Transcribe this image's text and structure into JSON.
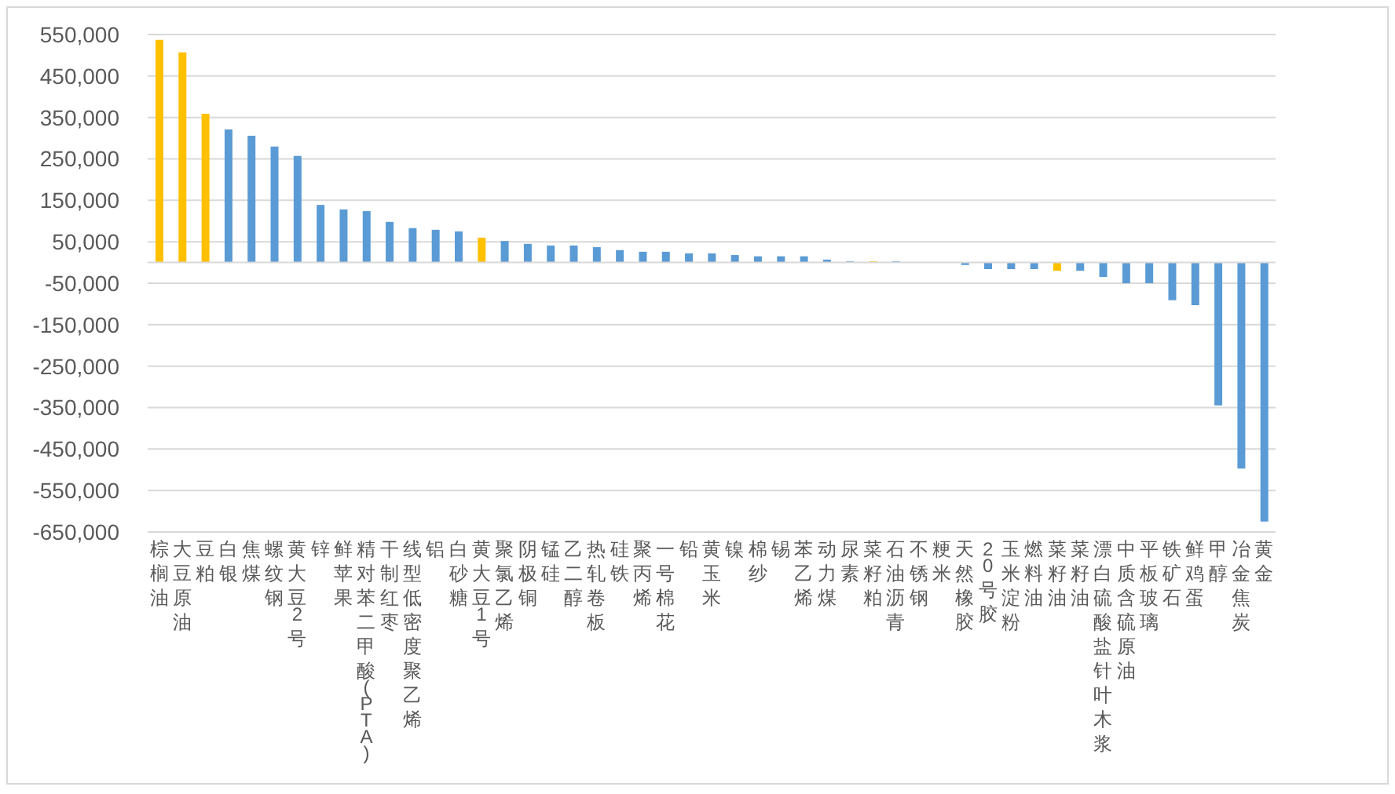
{
  "chart_data": {
    "type": "bar",
    "categories": [
      "棕榈油",
      "大豆原油",
      "豆粕",
      "白银",
      "焦煤",
      "螺纹钢",
      "黄大豆2号",
      "锌",
      "鲜苹果",
      "精对苯二甲酸(PTA)",
      "干制红枣",
      "线型低密度聚乙烯",
      "铝",
      "白砂糖",
      "黄大豆1号",
      "聚氯乙烯",
      "阴极铜",
      "锰硅",
      "乙二醇",
      "热轧卷板",
      "硅铁",
      "聚丙烯",
      "一号棉花",
      "铅",
      "黄玉米",
      "镍",
      "棉纱",
      "锡",
      "苯乙烯",
      "动力煤",
      "尿素",
      "菜籽粕",
      "石油沥青",
      "不锈钢",
      "粳米",
      "天然橡胶",
      "20号胶",
      "玉米淀粉",
      "燃料油",
      "菜籽油",
      "菜籽油",
      "漂白硫酸盐针叶木浆",
      "中质含硫原油",
      "平板玻璃",
      "铁矿石",
      "鲜鸡蛋",
      "甲醇",
      "冶金焦炭",
      "黄金"
    ],
    "values": [
      537000,
      507000,
      359000,
      321000,
      306000,
      280000,
      257000,
      139000,
      128000,
      124000,
      98000,
      83000,
      79000,
      75000,
      60000,
      52000,
      45000,
      41000,
      41000,
      37000,
      30000,
      26000,
      26000,
      22000,
      22000,
      18000,
      15000,
      15000,
      15000,
      7000,
      3000,
      3000,
      3000,
      0,
      0,
      -6000,
      -16000,
      -16000,
      -16000,
      -20000,
      -20000,
      -35000,
      -50000,
      -50000,
      -91000,
      -103000,
      -345000,
      -497000,
      -625000
    ],
    "colors": [
      "#ffc000",
      "#ffc000",
      "#ffc000",
      "#5b9bd5",
      "#5b9bd5",
      "#5b9bd5",
      "#5b9bd5",
      "#5b9bd5",
      "#5b9bd5",
      "#5b9bd5",
      "#5b9bd5",
      "#5b9bd5",
      "#5b9bd5",
      "#5b9bd5",
      "#ffc000",
      "#5b9bd5",
      "#5b9bd5",
      "#5b9bd5",
      "#5b9bd5",
      "#5b9bd5",
      "#5b9bd5",
      "#5b9bd5",
      "#5b9bd5",
      "#5b9bd5",
      "#5b9bd5",
      "#5b9bd5",
      "#5b9bd5",
      "#5b9bd5",
      "#5b9bd5",
      "#5b9bd5",
      "#5b9bd5",
      "#ffc000",
      "#5b9bd5",
      "#5b9bd5",
      "#5b9bd5",
      "#5b9bd5",
      "#5b9bd5",
      "#5b9bd5",
      "#5b9bd5",
      "#ffc000",
      "#5b9bd5",
      "#5b9bd5",
      "#5b9bd5",
      "#5b9bd5",
      "#5b9bd5",
      "#5b9bd5",
      "#5b9bd5",
      "#5b9bd5",
      "#5b9bd5"
    ],
    "ylim": [
      -650000,
      550000
    ],
    "yticks": [
      {
        "value": -650000,
        "label": "-650,000"
      },
      {
        "value": -550000,
        "label": "-550,000"
      },
      {
        "value": -450000,
        "label": "-450,000"
      },
      {
        "value": -350000,
        "label": "-350,000"
      },
      {
        "value": -250000,
        "label": "-250,000"
      },
      {
        "value": -150000,
        "label": "-150,000"
      },
      {
        "value": -50000,
        "label": "-50,000"
      },
      {
        "value": 50000,
        "label": "50,000"
      },
      {
        "value": 150000,
        "label": "150,000"
      },
      {
        "value": 250000,
        "label": "250,000"
      },
      {
        "value": 350000,
        "label": "350,000"
      },
      {
        "value": 450000,
        "label": "450,000"
      },
      {
        "value": 550000,
        "label": "550,000"
      }
    ],
    "grid": "y"
  }
}
